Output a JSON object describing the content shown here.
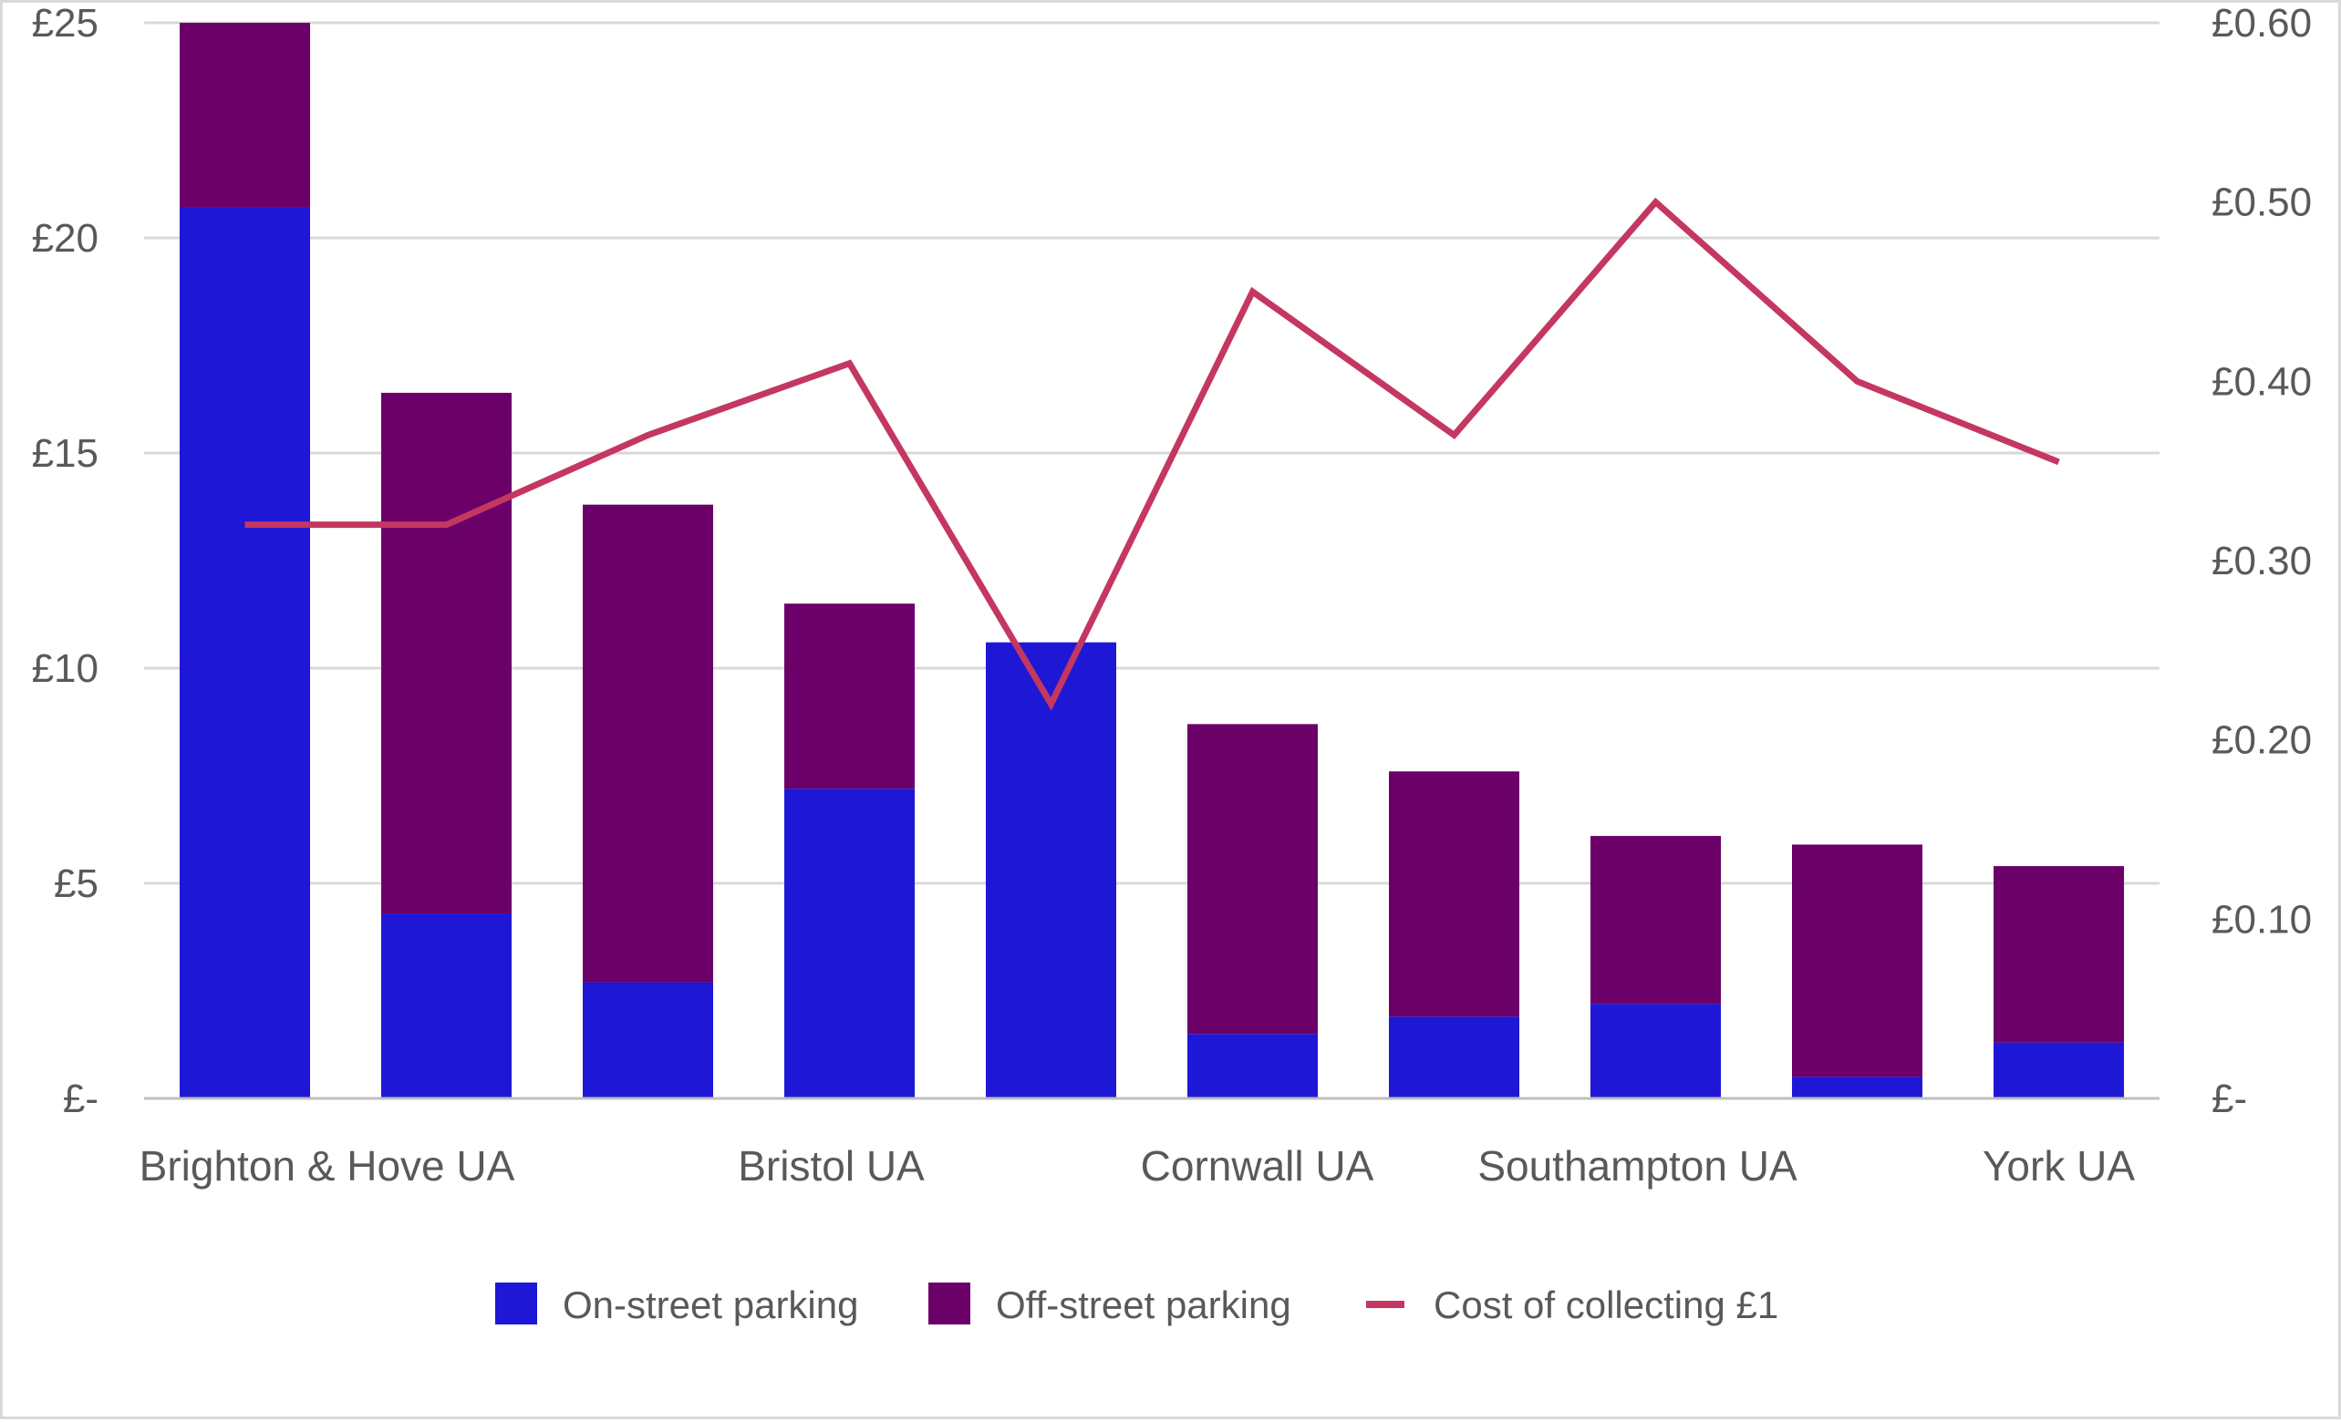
{
  "chart_data": {
    "type": "bar",
    "stacked": true,
    "categories": [
      "Brighton & Hove UA",
      "",
      "",
      "Bristol UA",
      "",
      "Cornwall UA",
      "",
      "Southampton UA",
      "",
      "York UA"
    ],
    "series": [
      {
        "name": "On-street parking",
        "type": "bar",
        "axis": "left",
        "color": "#1f17d6",
        "values": [
          20.7,
          4.3,
          2.7,
          7.2,
          10.6,
          1.5,
          1.9,
          2.2,
          0.5,
          1.3
        ]
      },
      {
        "name": "Off-street parking",
        "type": "bar",
        "axis": "left",
        "color": "#6b0068",
        "values": [
          4.3,
          12.1,
          11.1,
          4.3,
          0,
          7.2,
          5.7,
          3.9,
          5.4,
          4.1
        ]
      },
      {
        "name": "Cost of collecting £1",
        "type": "line",
        "axis": "right",
        "color": "#c43761",
        "values": [
          0.32,
          0.32,
          0.37,
          0.41,
          0.22,
          0.45,
          0.37,
          0.5,
          0.4,
          0.355
        ]
      }
    ],
    "y_left": {
      "min": 0,
      "max": 25,
      "ticks": [
        0,
        5,
        10,
        15,
        20,
        25
      ],
      "tick_labels": [
        "£-",
        "£5",
        "£10",
        "£15",
        "£20",
        "£25"
      ]
    },
    "y_right": {
      "min": 0,
      "max": 0.6,
      "ticks": [
        0,
        0.1,
        0.2,
        0.3,
        0.4,
        0.5,
        0.6
      ],
      "tick_labels": [
        "£-",
        "£0.10",
        "£0.20",
        "£0.30",
        "£0.40",
        "£0.50",
        "£0.60"
      ]
    },
    "grid": true,
    "legend": "bottom"
  }
}
